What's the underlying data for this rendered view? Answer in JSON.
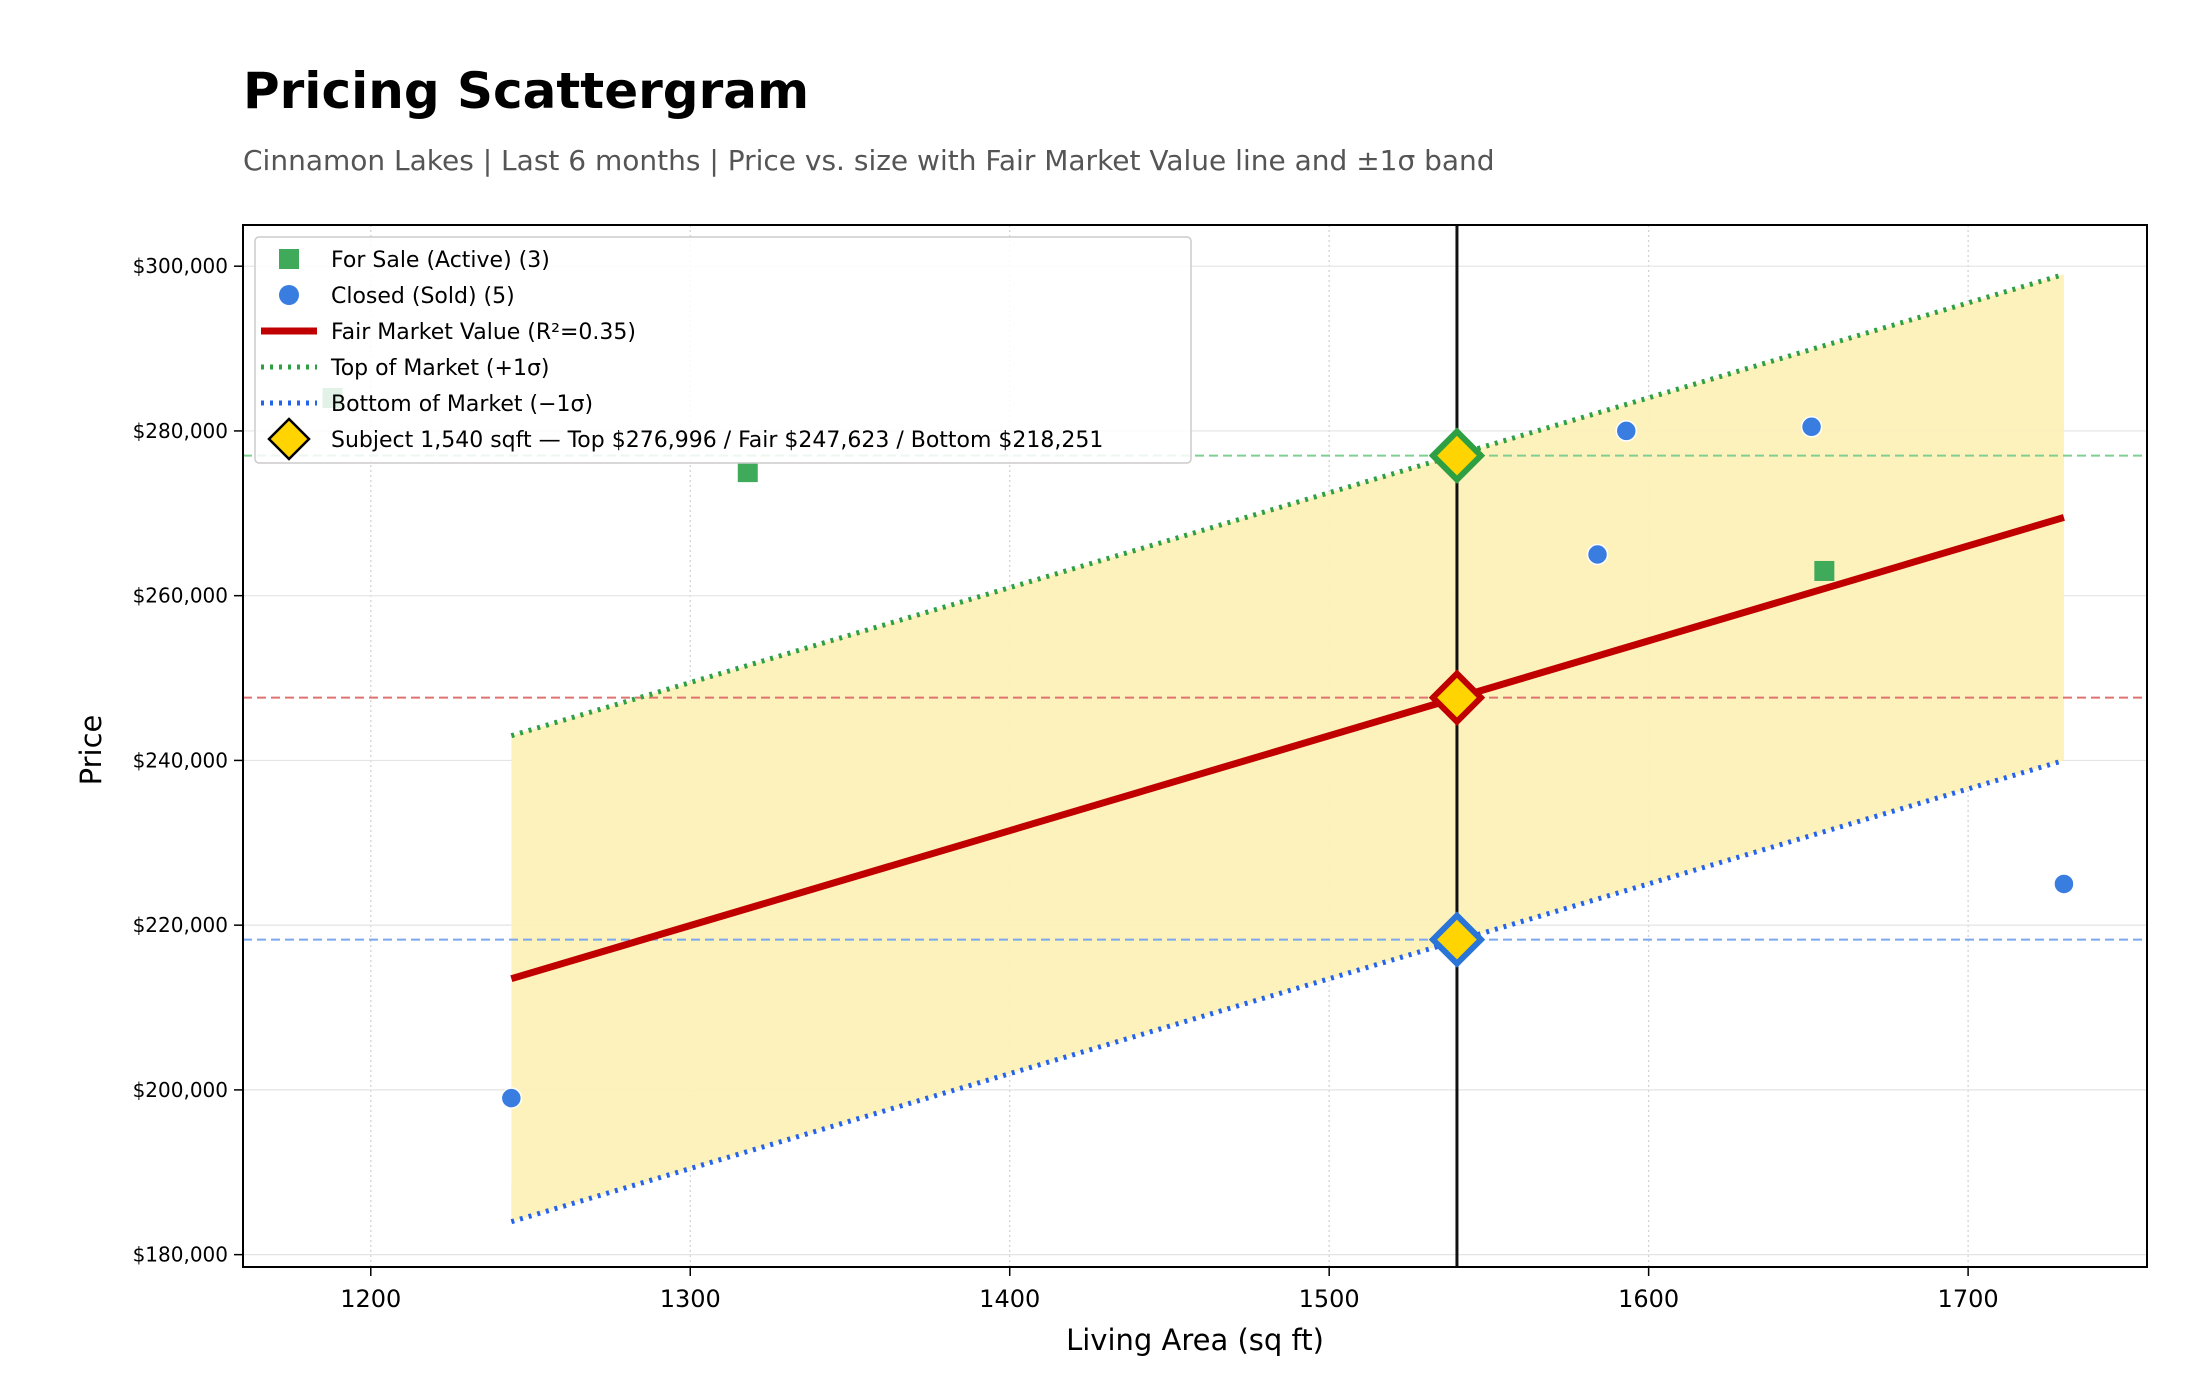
{
  "chart_data": {
    "type": "scatter",
    "title": "Pricing Scattergram",
    "subtitle": "Cinnamon Lakes  |  Last 6 months  |  Price vs. size with Fair Market Value line and ±1σ band",
    "xlabel": "Living Area (sq ft)",
    "ylabel": "Price",
    "xlim": [
      1160,
      1756
    ],
    "ylim": [
      178500,
      305000
    ],
    "x_ticks": [
      1200,
      1300,
      1400,
      1500,
      1600,
      1700
    ],
    "y_ticks": [
      180000,
      200000,
      220000,
      240000,
      260000,
      280000,
      300000
    ],
    "y_tick_labels": [
      "$180,000",
      "$200,000",
      "$220,000",
      "$240,000",
      "$260,000",
      "$280,000",
      "$300,000"
    ],
    "grid": true,
    "legend_position": "top-left",
    "series": [
      {
        "name": "For Sale (Active) (3)",
        "kind": "scatter",
        "marker": "square",
        "color": "#3faa5a",
        "points": [
          {
            "x": 1188,
            "y": 284000
          },
          {
            "x": 1318,
            "y": 275000
          },
          {
            "x": 1655,
            "y": 263000
          }
        ]
      },
      {
        "name": "Closed (Sold) (5)",
        "kind": "scatter",
        "marker": "circle",
        "color": "#3a7de0",
        "points": [
          {
            "x": 1244,
            "y": 199000
          },
          {
            "x": 1584,
            "y": 265000
          },
          {
            "x": 1593,
            "y": 280000
          },
          {
            "x": 1651,
            "y": 280500
          },
          {
            "x": 1730,
            "y": 225000
          }
        ]
      },
      {
        "name": "Fair Market Value (R²=0.35)",
        "kind": "line",
        "style": "solid",
        "color": "#c00000",
        "points": [
          {
            "x": 1244,
            "y": 213500
          },
          {
            "x": 1730,
            "y": 269500
          }
        ]
      },
      {
        "name": "Top of Market (+1σ)",
        "kind": "line",
        "style": "dotted",
        "color": "#2ea043",
        "points": [
          {
            "x": 1244,
            "y": 243000
          },
          {
            "x": 1730,
            "y": 299000
          }
        ]
      },
      {
        "name": "Bottom of Market (−1σ)",
        "kind": "line",
        "style": "dotted",
        "color": "#2563eb",
        "points": [
          {
            "x": 1244,
            "y": 184000
          },
          {
            "x": 1730,
            "y": 240000
          }
        ]
      }
    ],
    "band": {
      "color": "#fdf0b8",
      "x_start": 1244,
      "x_end": 1730
    },
    "subject": {
      "legend_label": "Subject 1,540 sqft  —  Top $276,996 / Fair $247,623 / Bottom $218,251",
      "x": 1540,
      "top": 276996,
      "fair": 247623,
      "bottom": 218251,
      "fill_color": "#ffd400",
      "top_edge_color": "#2ea043",
      "fair_edge_color": "#c00000",
      "bottom_edge_color": "#2a75d8"
    }
  }
}
